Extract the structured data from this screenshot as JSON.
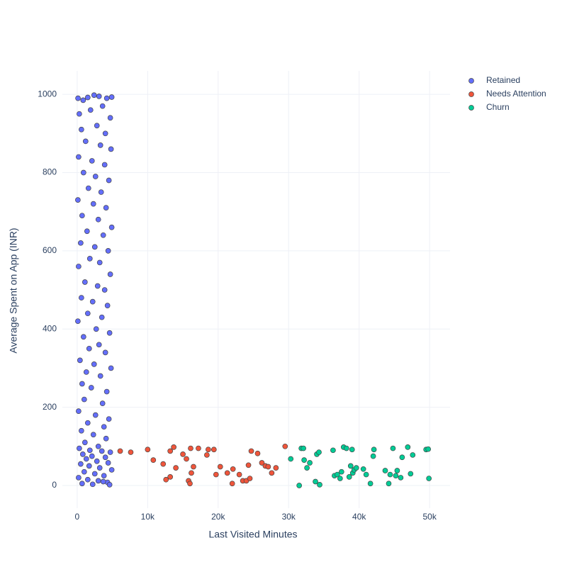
{
  "chart_data": {
    "type": "scatter",
    "x_label": "Last Visited Minutes",
    "y_label": "Average Spent on App (INR)",
    "xlim": [
      -2100,
      52900
    ],
    "ylim": [
      -58,
      1060
    ],
    "xticks": [
      0,
      {
        "value": 10000,
        "label": "10k"
      },
      {
        "value": 20000,
        "label": "20k"
      },
      {
        "value": 30000,
        "label": "30k"
      },
      {
        "value": 40000,
        "label": "40k"
      },
      {
        "value": 50000,
        "label": "50k"
      }
    ],
    "yticks": [
      0,
      200,
      400,
      600,
      800,
      1000
    ],
    "grid": true,
    "legend": "top-right",
    "series": [
      {
        "name": "Retained",
        "color": "#636efa",
        "x": [
          120,
          850,
          1500,
          2400,
          3100,
          4200,
          4900,
          300,
          1900,
          3600,
          4700,
          600,
          2800,
          4000,
          1200,
          3300,
          4800,
          200,
          2100,
          3900,
          900,
          2600,
          4500,
          1600,
          3400,
          100,
          2300,
          4100,
          700,
          3000,
          4900,
          1400,
          3700,
          500,
          2500,
          4400,
          1800,
          3200,
          200,
          4700,
          1100,
          2900,
          3900,
          600,
          2200,
          4300,
          1500,
          3500,
          100,
          2700,
          4600,
          900,
          3100,
          1700,
          4000,
          400,
          2400,
          4800,
          1300,
          3300,
          700,
          2000,
          4200,
          1000,
          3600,
          200,
          2600,
          4500,
          1500,
          3800,
          600,
          2300,
          4100,
          1100,
          3000,
          300,
          1800,
          3500,
          4700,
          800,
          2100,
          4000,
          1300,
          2800,
          4400,
          500,
          1700,
          3200,
          4900,
          1000,
          2500,
          3800,
          200,
          1500,
          3000,
          4300,
          700,
          2200,
          3700,
          4600
        ],
        "values": [
          990,
          985,
          992,
          998,
          995,
          990,
          993,
          950,
          960,
          970,
          940,
          910,
          920,
          900,
          880,
          870,
          860,
          840,
          830,
          820,
          800,
          790,
          780,
          760,
          750,
          730,
          720,
          710,
          690,
          680,
          660,
          650,
          640,
          620,
          610,
          600,
          580,
          570,
          560,
          540,
          520,
          510,
          500,
          480,
          470,
          460,
          440,
          430,
          420,
          400,
          390,
          380,
          360,
          350,
          340,
          320,
          310,
          300,
          290,
          280,
          260,
          250,
          240,
          220,
          210,
          190,
          180,
          170,
          160,
          150,
          140,
          130,
          120,
          110,
          100,
          95,
          90,
          88,
          85,
          80,
          75,
          72,
          68,
          62,
          58,
          55,
          50,
          45,
          40,
          35,
          30,
          25,
          20,
          15,
          12,
          8,
          5,
          3,
          10,
          2
        ]
      },
      {
        "name": "Needs Attention",
        "color": "#EF553B",
        "x": [
          6100,
          7600,
          10000,
          10800,
          12200,
          13200,
          13700,
          15000,
          15500,
          16100,
          16500,
          17200,
          18600,
          19400,
          18400,
          19700,
          20300,
          21300,
          22000,
          22100,
          23000,
          23500,
          24000,
          24300,
          24700,
          25600,
          26200,
          26700,
          27100,
          27600,
          28200,
          29500,
          12600,
          13200,
          15800,
          16000,
          16200,
          14000,
          24500
        ],
        "values": [
          88,
          85,
          92,
          65,
          55,
          88,
          98,
          80,
          68,
          95,
          48,
          95,
          92,
          92,
          78,
          28,
          48,
          32,
          5,
          42,
          28,
          12,
          12,
          52,
          88,
          82,
          58,
          50,
          48,
          32,
          45,
          100,
          15,
          22,
          12,
          5,
          32,
          45,
          18
        ]
      },
      {
        "name": "Churn",
        "color": "#00cc96",
        "x": [
          30300,
          31500,
          31800,
          32100,
          32200,
          32600,
          33000,
          33800,
          34000,
          34300,
          34400,
          36300,
          36500,
          36900,
          37300,
          37500,
          37800,
          38200,
          38600,
          38800,
          39000,
          39100,
          39300,
          39600,
          40600,
          41000,
          41600,
          42000,
          42100,
          43700,
          44200,
          44400,
          44800,
          45200,
          45400,
          45900,
          46100,
          46900,
          47300,
          47600,
          49500,
          49800,
          49900
        ],
        "values": [
          68,
          0,
          95,
          95,
          65,
          45,
          58,
          10,
          80,
          85,
          2,
          90,
          25,
          28,
          18,
          35,
          98,
          95,
          22,
          50,
          92,
          32,
          40,
          45,
          42,
          28,
          5,
          75,
          92,
          38,
          5,
          28,
          95,
          25,
          38,
          20,
          72,
          98,
          30,
          78,
          92,
          93,
          18
        ]
      }
    ]
  }
}
